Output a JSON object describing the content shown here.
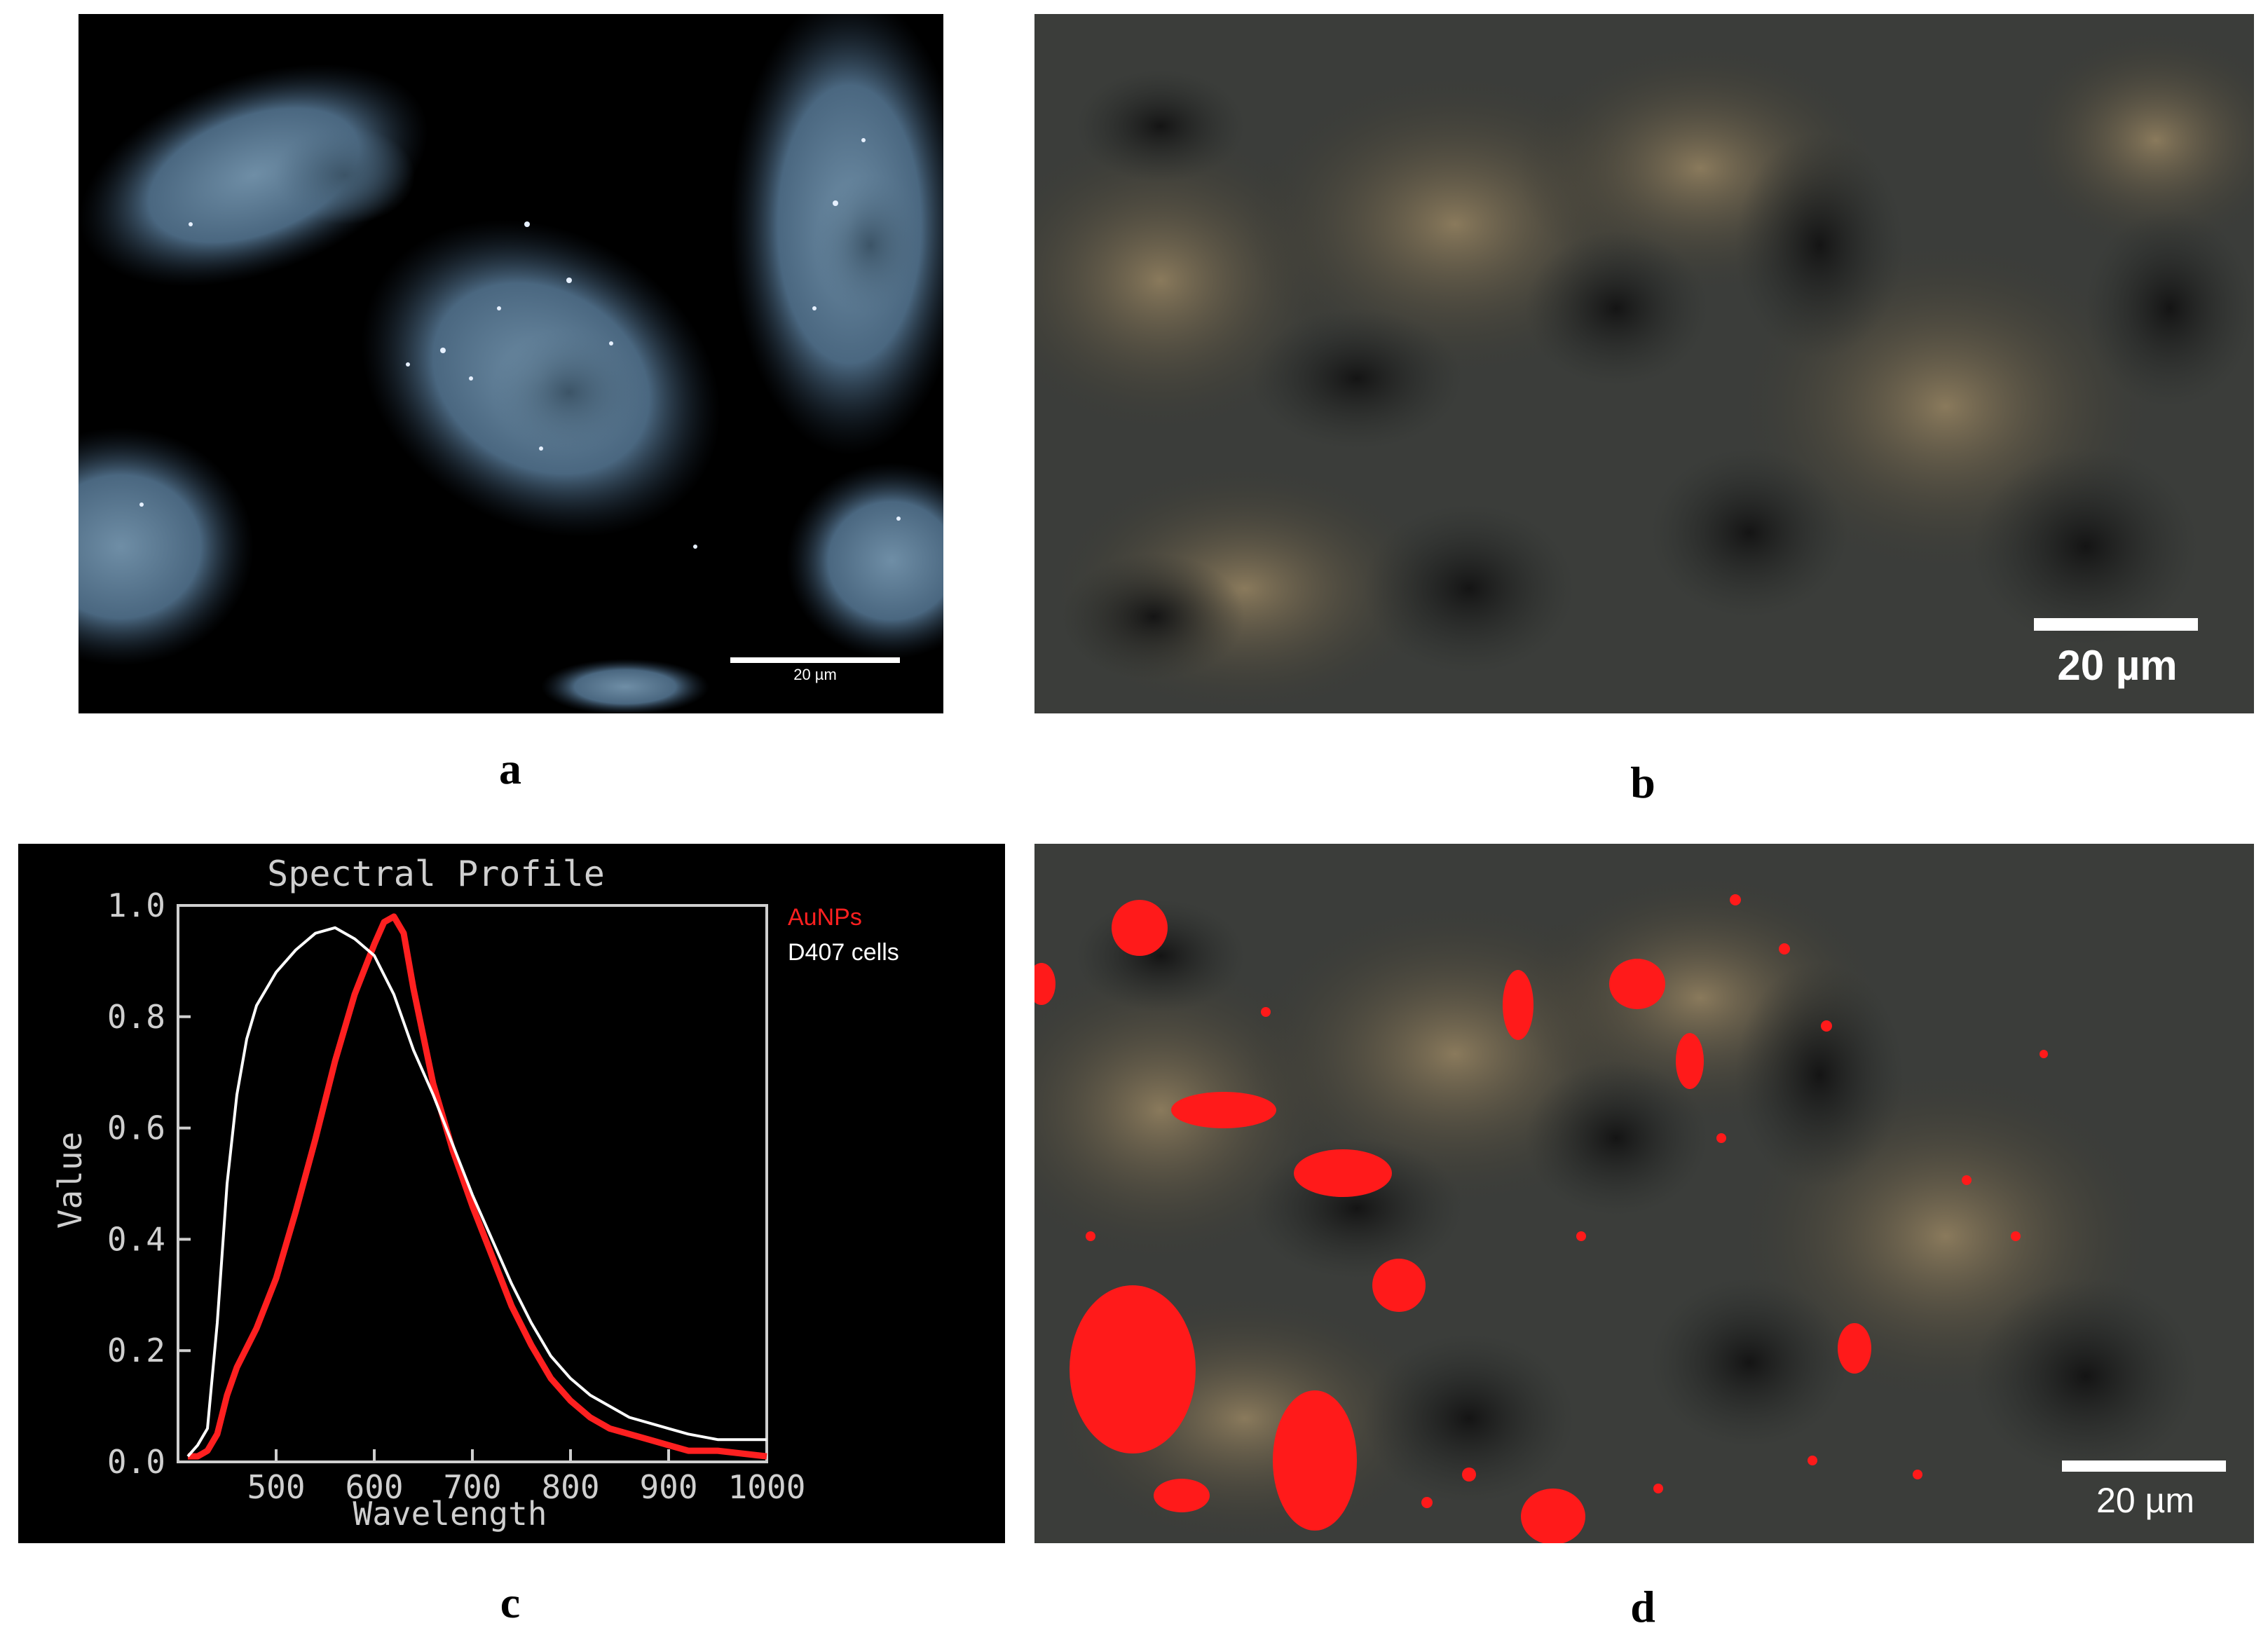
{
  "panels": {
    "a": {
      "letter": "a",
      "scale_label": "20 µm"
    },
    "b": {
      "letter": "b",
      "scale_label": "20 µm"
    },
    "c": {
      "letter": "c"
    },
    "d": {
      "letter": "d",
      "scale_label": "20 µm"
    }
  },
  "chart_data": {
    "type": "line",
    "title": "Spectral Profile",
    "xlabel": "Wavelength",
    "ylabel": "Value",
    "xlim": [
      400,
      1000
    ],
    "ylim": [
      0,
      1.0
    ],
    "xticks": [
      500,
      600,
      700,
      800,
      900,
      1000
    ],
    "yticks": [
      0.0,
      0.2,
      0.4,
      0.6,
      0.8,
      1.0
    ],
    "ytick_labels": [
      "0.0",
      "0.2",
      "0.4",
      "0.6",
      "0.8",
      "1.0"
    ],
    "background": "#000000",
    "legend_position": "top-right",
    "series": [
      {
        "name": "AuNPs",
        "color": "#ff2020",
        "x": [
          410,
          420,
          430,
          440,
          450,
          460,
          480,
          500,
          520,
          540,
          560,
          580,
          600,
          610,
          620,
          630,
          640,
          660,
          680,
          700,
          720,
          740,
          760,
          780,
          800,
          820,
          840,
          860,
          880,
          900,
          920,
          950,
          1000
        ],
        "y": [
          0.01,
          0.01,
          0.02,
          0.05,
          0.12,
          0.17,
          0.24,
          0.33,
          0.45,
          0.58,
          0.72,
          0.84,
          0.93,
          0.97,
          0.98,
          0.95,
          0.85,
          0.68,
          0.56,
          0.46,
          0.37,
          0.28,
          0.21,
          0.15,
          0.11,
          0.08,
          0.06,
          0.05,
          0.04,
          0.03,
          0.02,
          0.02,
          0.01
        ]
      },
      {
        "name": "D407 cells",
        "color": "#ffffff",
        "x": [
          410,
          420,
          430,
          440,
          450,
          460,
          470,
          480,
          500,
          520,
          540,
          560,
          580,
          600,
          620,
          640,
          660,
          680,
          700,
          720,
          740,
          760,
          780,
          800,
          820,
          840,
          860,
          880,
          900,
          920,
          950,
          1000
        ],
        "y": [
          0.01,
          0.03,
          0.06,
          0.25,
          0.5,
          0.66,
          0.76,
          0.82,
          0.88,
          0.92,
          0.95,
          0.96,
          0.94,
          0.91,
          0.84,
          0.74,
          0.66,
          0.57,
          0.48,
          0.4,
          0.32,
          0.25,
          0.19,
          0.15,
          0.12,
          0.1,
          0.08,
          0.07,
          0.06,
          0.05,
          0.04,
          0.04
        ]
      }
    ]
  }
}
